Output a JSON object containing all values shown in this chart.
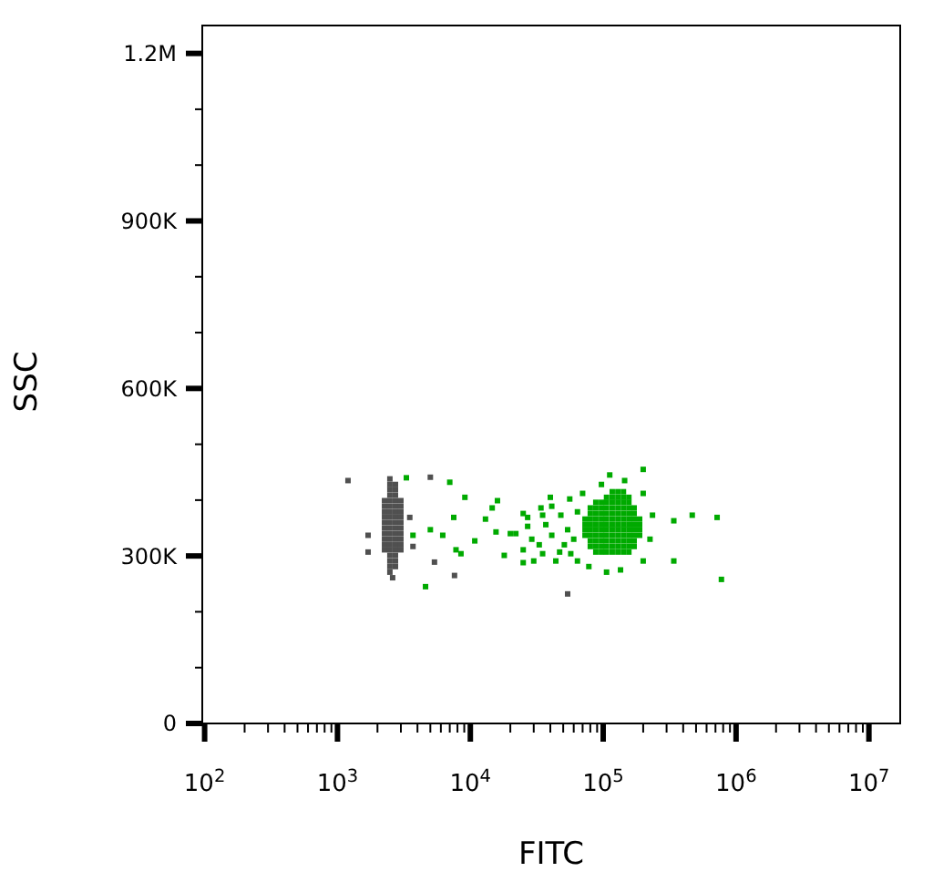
{
  "chart_data": {
    "type": "scatter",
    "xlabel": "FITC",
    "ylabel": "SSC",
    "log": "x",
    "marker": "square",
    "xlim": [
      96,
      17200000
    ],
    "ylim": [
      0,
      1250000
    ],
    "xticks": [
      {
        "value": 100,
        "label": "10$^{2}$"
      },
      {
        "value": 200,
        "label": null
      },
      {
        "value": 300,
        "label": null
      },
      {
        "value": 400,
        "label": null
      },
      {
        "value": 500,
        "label": null
      },
      {
        "value": 600,
        "label": null
      },
      {
        "value": 700,
        "label": null
      },
      {
        "value": 800,
        "label": null
      },
      {
        "value": 900,
        "label": null
      },
      {
        "value": 1000,
        "label": "10$^{3}$"
      },
      {
        "value": 2000,
        "label": null
      },
      {
        "value": 3000,
        "label": null
      },
      {
        "value": 4000,
        "label": null
      },
      {
        "value": 5000,
        "label": null
      },
      {
        "value": 6000,
        "label": null
      },
      {
        "value": 7000,
        "label": null
      },
      {
        "value": 8000,
        "label": null
      },
      {
        "value": 9000,
        "label": null
      },
      {
        "value": 10000,
        "label": "10$^{4}$"
      },
      {
        "value": 20000,
        "label": null
      },
      {
        "value": 30000,
        "label": null
      },
      {
        "value": 40000,
        "label": null
      },
      {
        "value": 50000,
        "label": null
      },
      {
        "value": 60000,
        "label": null
      },
      {
        "value": 70000,
        "label": null
      },
      {
        "value": 80000,
        "label": null
      },
      {
        "value": 90000,
        "label": null
      },
      {
        "value": 100000,
        "label": "10$^{5}$"
      },
      {
        "value": 200000,
        "label": null
      },
      {
        "value": 300000,
        "label": null
      },
      {
        "value": 400000,
        "label": null
      },
      {
        "value": 500000,
        "label": null
      },
      {
        "value": 600000,
        "label": null
      },
      {
        "value": 700000,
        "label": null
      },
      {
        "value": 800000,
        "label": null
      },
      {
        "value": 900000,
        "label": null
      },
      {
        "value": 1000000,
        "label": "10$^{6}$"
      },
      {
        "value": 2000000,
        "label": null
      },
      {
        "value": 3000000,
        "label": null
      },
      {
        "value": 4000000,
        "label": null
      },
      {
        "value": 5000000,
        "label": null
      },
      {
        "value": 6000000,
        "label": null
      },
      {
        "value": 7000000,
        "label": null
      },
      {
        "value": 8000000,
        "label": null
      },
      {
        "value": 9000000,
        "label": null
      },
      {
        "value": 10000000,
        "label": "10$^{7}$"
      }
    ],
    "yticks": [
      0,
      {
        "value": 100000,
        "label": null
      },
      {
        "value": 200000,
        "label": null
      },
      {
        "value": 300000,
        "label": "300K"
      },
      {
        "value": 400000,
        "label": null
      },
      {
        "value": 500000,
        "label": null
      },
      {
        "value": 600000,
        "label": "600K"
      },
      {
        "value": 700000,
        "label": null
      },
      {
        "value": 800000,
        "label": null
      },
      {
        "value": 900000,
        "label": "900K"
      },
      {
        "value": 1000000,
        "label": null
      },
      {
        "value": 1100000,
        "label": null
      },
      {
        "value": 1200000,
        "label": "1.2M"
      }
    ],
    "series": [
      {
        "color": "#505050",
        "x": [
          2480,
          2480,
          2730,
          2480,
          2730,
          2480,
          2730,
          2260,
          2480,
          2730,
          3000,
          2260,
          2480,
          2730,
          3000,
          2260,
          2480,
          2730,
          3000,
          2260,
          2480,
          2730,
          3000,
          2260,
          2480,
          2730,
          3000,
          2260,
          2480,
          2730,
          3000,
          2260,
          2480,
          2730,
          3000,
          2260,
          2480,
          2730,
          3000,
          2260,
          2480,
          2730,
          3000,
          2260,
          2480,
          2730,
          3000,
          2480,
          2730,
          2480,
          2730,
          2480,
          2730,
          2480,
          2600,
          1200,
          5000,
          5370,
          1700,
          1700,
          3700,
          3500,
          7600,
          54000
        ],
        "values": [
          438000,
          428000,
          428000,
          419000,
          419000,
          409000,
          409000,
          399000,
          399000,
          399000,
          399000,
          389000,
          389000,
          389000,
          389000,
          379000,
          379000,
          379000,
          379000,
          370000,
          370000,
          370000,
          370000,
          360000,
          360000,
          360000,
          360000,
          350000,
          350000,
          350000,
          350000,
          340000,
          340000,
          340000,
          340000,
          330000,
          330000,
          330000,
          330000,
          320000,
          320000,
          320000,
          320000,
          311000,
          311000,
          311000,
          311000,
          301000,
          301000,
          291000,
          291000,
          281000,
          281000,
          271000,
          261000,
          435000,
          441000,
          289000,
          337000,
          307000,
          317000,
          369000,
          265000,
          232000
        ]
      },
      {
        "color": "#00aa00",
        "x": [
          117000,
          129000,
          142000,
          106000,
          117000,
          129000,
          142000,
          156000,
          88000,
          97000,
          106000,
          117000,
          129000,
          142000,
          156000,
          80000,
          88000,
          97000,
          106000,
          117000,
          129000,
          142000,
          156000,
          171000,
          80000,
          88000,
          97000,
          106000,
          117000,
          129000,
          142000,
          156000,
          171000,
          73000,
          80000,
          88000,
          97000,
          106000,
          117000,
          129000,
          142000,
          156000,
          171000,
          188000,
          73000,
          80000,
          88000,
          97000,
          106000,
          117000,
          129000,
          142000,
          156000,
          171000,
          188000,
          73000,
          80000,
          88000,
          97000,
          106000,
          117000,
          129000,
          142000,
          156000,
          171000,
          188000,
          73000,
          80000,
          88000,
          97000,
          106000,
          117000,
          129000,
          142000,
          156000,
          171000,
          188000,
          80000,
          88000,
          97000,
          106000,
          117000,
          129000,
          142000,
          156000,
          171000,
          80000,
          88000,
          97000,
          106000,
          117000,
          129000,
          142000,
          156000,
          171000,
          88000,
          97000,
          106000,
          117000,
          129000,
          142000,
          156000,
          3300,
          7000,
          9100,
          16000,
          14600,
          13000,
          7500,
          5000,
          3700,
          6200,
          10800,
          15600,
          20000,
          7800,
          8500,
          18000,
          25000,
          4600,
          35000,
          29000,
          33000,
          30000,
          25000,
          22000,
          27000,
          25000,
          40000,
          41000,
          37000,
          35000,
          44000,
          51000,
          54000,
          48000,
          56000,
          70000,
          97000,
          112000,
          145000,
          200000,
          200000,
          235000,
          225000,
          200000,
          135000,
          106000,
          78000,
          64000,
          340000,
          468000,
          720000,
          776000,
          340000,
          27000,
          34000,
          41000,
          47000,
          57000,
          64000,
          60000
        ],
        "values": [
          415000,
          415000,
          415000,
          405000,
          405000,
          405000,
          405000,
          405000,
          396000,
          396000,
          396000,
          396000,
          396000,
          396000,
          396000,
          386000,
          386000,
          386000,
          386000,
          386000,
          386000,
          386000,
          386000,
          386000,
          376000,
          376000,
          376000,
          376000,
          376000,
          376000,
          376000,
          376000,
          376000,
          366000,
          366000,
          366000,
          366000,
          366000,
          366000,
          366000,
          366000,
          366000,
          366000,
          366000,
          356000,
          356000,
          356000,
          356000,
          356000,
          356000,
          356000,
          356000,
          356000,
          356000,
          356000,
          347000,
          347000,
          347000,
          347000,
          347000,
          347000,
          347000,
          347000,
          347000,
          347000,
          347000,
          337000,
          337000,
          337000,
          337000,
          337000,
          337000,
          337000,
          337000,
          337000,
          337000,
          337000,
          327000,
          327000,
          327000,
          327000,
          327000,
          327000,
          327000,
          327000,
          327000,
          317000,
          317000,
          317000,
          317000,
          317000,
          317000,
          317000,
          317000,
          317000,
          307000,
          307000,
          307000,
          307000,
          307000,
          307000,
          307000,
          440000,
          432000,
          405000,
          399000,
          386000,
          366000,
          369000,
          347000,
          337000,
          337000,
          327000,
          343000,
          340000,
          311000,
          304000,
          301000,
          288000,
          245000,
          373000,
          330000,
          320000,
          291000,
          311000,
          340000,
          353000,
          376000,
          405000,
          389000,
          356000,
          304000,
          291000,
          320000,
          347000,
          373000,
          402000,
          412000,
          428000,
          445000,
          435000,
          455000,
          412000,
          373000,
          330000,
          291000,
          275000,
          271000,
          281000,
          291000,
          363000,
          373000,
          369000,
          258000,
          291000,
          369000,
          386000,
          337000,
          307000,
          304000,
          379000,
          330000
        ]
      }
    ]
  }
}
